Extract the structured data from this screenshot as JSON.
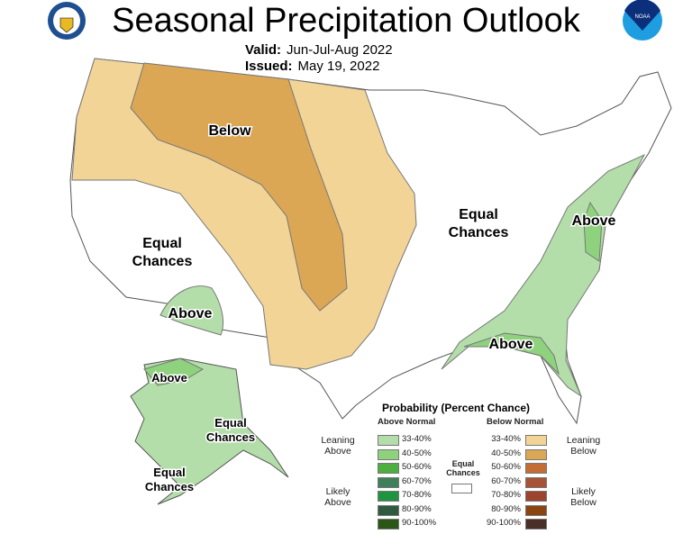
{
  "header": {
    "title": "Seasonal Precipitation Outlook",
    "valid_label": "Valid:",
    "valid_value": "Jun-Jul-Aug 2022",
    "issued_label": "Issued:",
    "issued_value": "May 19, 2022",
    "logos": [
      "doc-seal",
      "noaa-logo"
    ],
    "noaa_text": "NOAA"
  },
  "map_labels": {
    "below": "Below",
    "equal_west_1": "Equal",
    "equal_west_2": "Chances",
    "equal_east_1": "Equal",
    "equal_east_2": "Chances",
    "above_sw": "Above",
    "above_ne": "Above",
    "above_se": "Above",
    "ak_above": "Above",
    "ak_equal_1": "Equal",
    "ak_equal_2": "Chances",
    "ak_equal_sw_1": "Equal",
    "ak_equal_sw_2": "Chances"
  },
  "legend": {
    "title": "Probability (Percent Chance)",
    "above_header": "Above Normal",
    "below_header": "Below Normal",
    "leaning_above": "Leaning Above",
    "likely_above": "Likely Above",
    "leaning_below": "Leaning Below",
    "likely_below": "Likely Below",
    "equal": "Equal Chances",
    "equal_color": "#ffffff",
    "above": [
      {
        "range": "33-40%",
        "color": "#b3dea9"
      },
      {
        "range": "40-50%",
        "color": "#8fd27e"
      },
      {
        "range": "50-60%",
        "color": "#4caf3f"
      },
      {
        "range": "60-70%",
        "color": "#3f7f5a"
      },
      {
        "range": "70-80%",
        "color": "#1f9440"
      },
      {
        "range": "80-90%",
        "color": "#2f5a40"
      },
      {
        "range": "90-100%",
        "color": "#2a5618"
      }
    ],
    "below": [
      {
        "range": "33-40%",
        "color": "#f3d497"
      },
      {
        "range": "40-50%",
        "color": "#dba755"
      },
      {
        "range": "50-60%",
        "color": "#c26e35"
      },
      {
        "range": "60-70%",
        "color": "#a65338"
      },
      {
        "range": "70-80%",
        "color": "#9c4430"
      },
      {
        "range": "80-90%",
        "color": "#8a4510"
      },
      {
        "range": "90-100%",
        "color": "#4a2e28"
      }
    ]
  }
}
